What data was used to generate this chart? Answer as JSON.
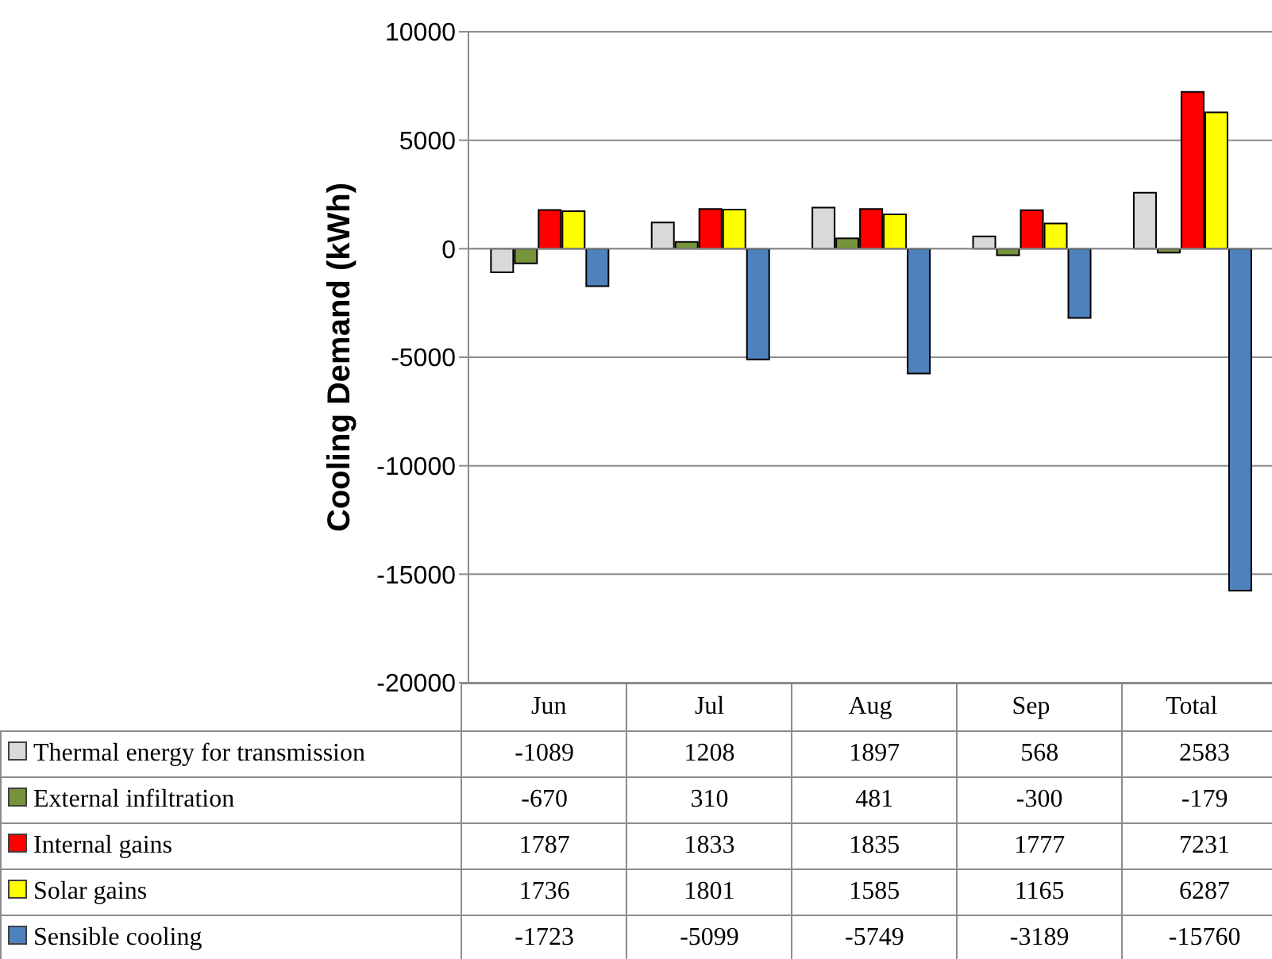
{
  "chart_data": {
    "type": "bar",
    "ylabel": "Cooling Demand (kWh)",
    "categories": [
      "Jun",
      "Jul",
      "Aug",
      "Sep",
      "Total"
    ],
    "series": [
      {
        "name": "Thermal energy for transmission",
        "color": "#d9d9d9",
        "values": [
          -1089,
          1208,
          1897,
          568,
          2583
        ]
      },
      {
        "name": "External infiltration",
        "color": "#77933c",
        "values": [
          -670,
          310,
          481,
          -300,
          -179
        ]
      },
      {
        "name": "Internal gains",
        "color": "#ff0000",
        "values": [
          1787,
          1833,
          1835,
          1777,
          7231
        ]
      },
      {
        "name": "Solar gains",
        "color": "#ffff00",
        "values": [
          1736,
          1801,
          1585,
          1165,
          6287
        ]
      },
      {
        "name": "Sensible cooling",
        "color": "#4f81bd",
        "values": [
          -1723,
          -5099,
          -5749,
          -3189,
          -15760
        ]
      }
    ],
    "ylim": [
      -20000,
      10000
    ],
    "yticks": [
      -20000,
      -15000,
      -10000,
      -5000,
      0,
      5000,
      10000
    ],
    "grid": "y",
    "legend": "bottom",
    "data_labels": true
  }
}
